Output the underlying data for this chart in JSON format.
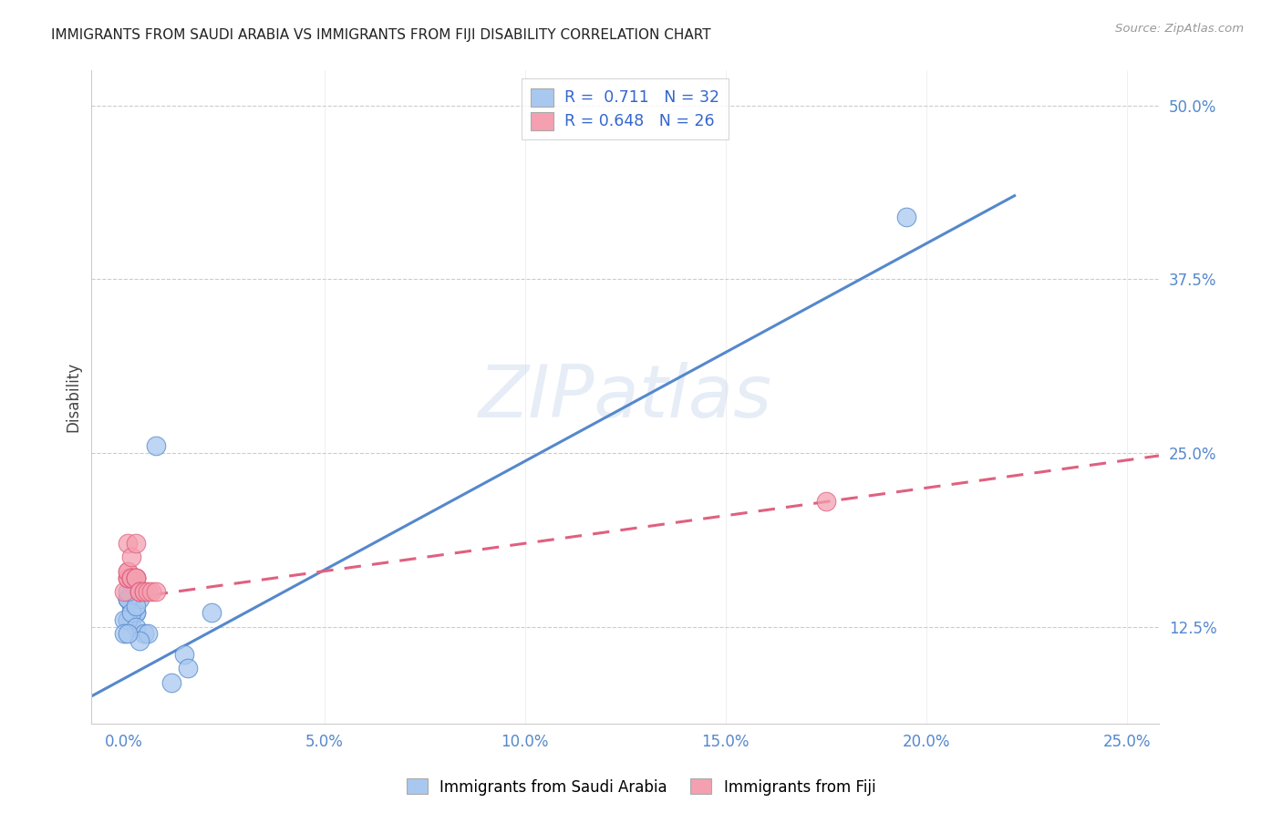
{
  "title": "IMMIGRANTS FROM SAUDI ARABIA VS IMMIGRANTS FROM FIJI DISABILITY CORRELATION CHART",
  "source": "Source: ZipAtlas.com",
  "ylabel": "Disability",
  "y_ticks": [
    0.125,
    0.25,
    0.375,
    0.5
  ],
  "y_tick_labels": [
    "12.5%",
    "25.0%",
    "37.5%",
    "50.0%"
  ],
  "x_ticks": [
    0.0,
    0.05,
    0.1,
    0.15,
    0.2,
    0.25
  ],
  "x_tick_labels": [
    "0.0%",
    "5.0%",
    "10.0%",
    "15.0%",
    "20.0%",
    "25.0%"
  ],
  "xlim": [
    -0.008,
    0.258
  ],
  "ylim": [
    0.055,
    0.525
  ],
  "legend_r1_part1": "R = ",
  "legend_r1_val": "0.711",
  "legend_r1_n": "N = 32",
  "legend_r2_part1": "R = ",
  "legend_r2_val": "0.648",
  "legend_r2_n": "N = 26",
  "saudi_color": "#a8c8f0",
  "fiji_color": "#f4a0b0",
  "blue_line_color": "#5588cc",
  "pink_line_color": "#e06080",
  "watermark": "ZIPatlas",
  "legend_label_saudi": "Immigrants from Saudi Arabia",
  "legend_label_fiji": "Immigrants from Fiji",
  "saudi_points_x": [
    0.001,
    0.002,
    0.001,
    0.002,
    0.003,
    0.001,
    0.002,
    0.002,
    0.003,
    0.004,
    0.002,
    0.001,
    0.001,
    0.001,
    0.001,
    0.0,
    0.001,
    0.002,
    0.003,
    0.005,
    0.006,
    0.004,
    0.003,
    0.0,
    0.001,
    0.008,
    0.012,
    0.015,
    0.016,
    0.022,
    0.195,
    0.001
  ],
  "saudi_points_y": [
    0.145,
    0.135,
    0.13,
    0.13,
    0.135,
    0.13,
    0.145,
    0.14,
    0.135,
    0.145,
    0.155,
    0.13,
    0.13,
    0.13,
    0.145,
    0.13,
    0.145,
    0.135,
    0.125,
    0.12,
    0.12,
    0.115,
    0.14,
    0.12,
    0.15,
    0.255,
    0.085,
    0.105,
    0.095,
    0.135,
    0.42,
    0.12
  ],
  "fiji_points_x": [
    0.0,
    0.001,
    0.001,
    0.001,
    0.001,
    0.001,
    0.001,
    0.002,
    0.002,
    0.002,
    0.002,
    0.002,
    0.003,
    0.003,
    0.003,
    0.003,
    0.003,
    0.004,
    0.004,
    0.004,
    0.005,
    0.005,
    0.006,
    0.007,
    0.008,
    0.175
  ],
  "fiji_points_y": [
    0.15,
    0.16,
    0.16,
    0.16,
    0.165,
    0.165,
    0.185,
    0.16,
    0.16,
    0.16,
    0.16,
    0.175,
    0.16,
    0.16,
    0.16,
    0.16,
    0.185,
    0.15,
    0.15,
    0.15,
    0.15,
    0.15,
    0.15,
    0.15,
    0.15,
    0.215
  ],
  "blue_line_x": [
    -0.008,
    0.222
  ],
  "blue_line_y": [
    0.075,
    0.435
  ],
  "pink_line_x": [
    0.0,
    0.258
  ],
  "pink_line_y": [
    0.145,
    0.248
  ],
  "grid_color": "#cccccc",
  "spine_color": "#cccccc"
}
